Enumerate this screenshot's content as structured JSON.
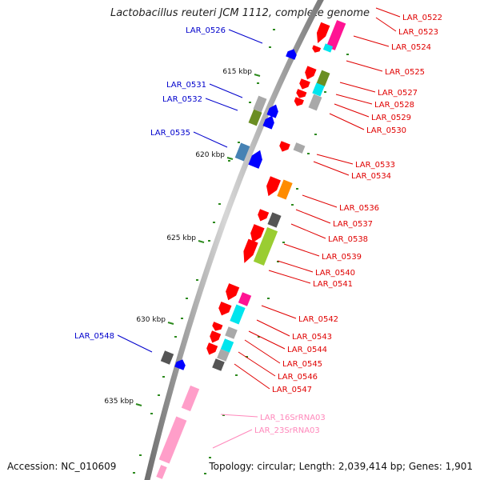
{
  "title": "Lactobacillus reuteri JCM 1112, complete genome",
  "footer": {
    "accession": "Accession: NC_010609",
    "summary": "Topology: circular; Length: 2,039,414 bp; Genes: 1,901"
  },
  "colors": {
    "backbone": "#8c8c8c",
    "tick": "#2d8a1e",
    "label_forward_strand": "#0000cc",
    "label_reverse_strand": "#e00000",
    "label_rna": "#ff88bb",
    "gene_red": "#ff0000",
    "gene_blue": "#0000ff",
    "gene_pink": "#ff1493",
    "gene_cyan": "#00e5ee",
    "gene_gray": "#a9a9a9",
    "gene_dark_gray": "#555555",
    "gene_olive": "#6b8e23",
    "gene_steel_blue": "#4682b4",
    "gene_orange": "#ff8c00",
    "gene_lime": "#9acd32",
    "gene_light_pink": "#ff9ec9"
  },
  "kbp_labels": [
    "615 kbp",
    "620 kbp",
    "625 kbp",
    "630 kbp",
    "635 kbp"
  ],
  "genes_left": [
    {
      "label": "LAR_0526"
    },
    {
      "label": "LAR_0531"
    },
    {
      "label": "LAR_0532"
    },
    {
      "label": "LAR_0535"
    },
    {
      "label": "LAR_0548"
    }
  ],
  "genes_right": [
    {
      "label": "LAR_0522"
    },
    {
      "label": "LAR_0523"
    },
    {
      "label": "LAR_0524"
    },
    {
      "label": "LAR_0525"
    },
    {
      "label": "LAR_0527"
    },
    {
      "label": "LAR_0528"
    },
    {
      "label": "LAR_0529"
    },
    {
      "label": "LAR_0530"
    },
    {
      "label": "LAR_0533"
    },
    {
      "label": "LAR_0534"
    },
    {
      "label": "LAR_0536"
    },
    {
      "label": "LAR_0537"
    },
    {
      "label": "LAR_0538"
    },
    {
      "label": "LAR_0539"
    },
    {
      "label": "LAR_0540"
    },
    {
      "label": "LAR_0541"
    },
    {
      "label": "LAR_0542"
    },
    {
      "label": "LAR_0543"
    },
    {
      "label": "LAR_0544"
    },
    {
      "label": "LAR_0545"
    },
    {
      "label": "LAR_0546"
    },
    {
      "label": "LAR_0547"
    }
  ],
  "rna_genes": [
    {
      "label": "LAR_16SrRNA03"
    },
    {
      "label": "LAR_23SrRNA03"
    }
  ]
}
